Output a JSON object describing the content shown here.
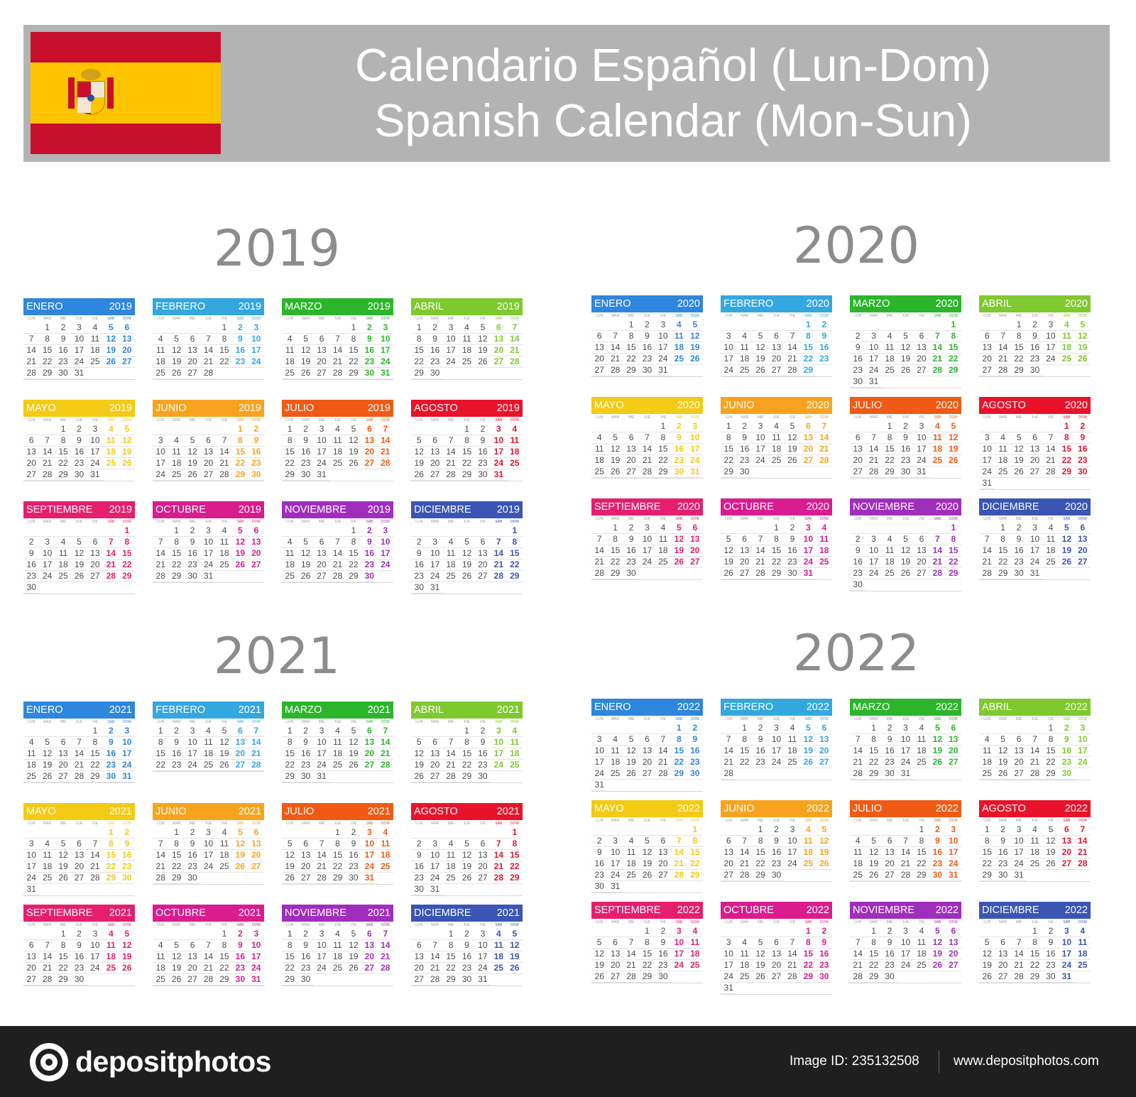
{
  "header": {
    "title_line1": "Calendario Español (Lun-Dom)",
    "title_line2": "Spanish Calendar (Mon-Sun)"
  },
  "flag": {
    "colors": {
      "red": "#c8102e",
      "yellow": "#ffc400"
    },
    "icon": "spain-flag-icon"
  },
  "day_names": [
    "LUN",
    "MAR",
    "MIÉ",
    "JUE",
    "VIE",
    "SÁB",
    "DOM"
  ],
  "month_names": [
    "ENERO",
    "FEBRERO",
    "MARZO",
    "ABRIL",
    "MAYO",
    "JUNIO",
    "JULIO",
    "AGOSTO",
    "SEPTIEMBRE",
    "OCTUBRE",
    "NOVIEMBRE",
    "DICIEMBRE"
  ],
  "month_colors": [
    "#2e86de",
    "#33a7e0",
    "#2bb52b",
    "#7ec92e",
    "#f3ca14",
    "#f7a31f",
    "#f05a14",
    "#e8132a",
    "#e61e6e",
    "#d91c8e",
    "#a02ebd",
    "#3a55b4"
  ],
  "year_titles": {
    "y2019": "2019",
    "y2020": "2020",
    "y2021": "2021",
    "y2022": "2022"
  },
  "years": [
    {
      "year": "2019",
      "months": [
        {
          "offset": 1,
          "days": 31
        },
        {
          "offset": 4,
          "days": 28
        },
        {
          "offset": 4,
          "days": 31
        },
        {
          "offset": 0,
          "days": 30
        },
        {
          "offset": 2,
          "days": 31
        },
        {
          "offset": 5,
          "days": 30
        },
        {
          "offset": 0,
          "days": 31
        },
        {
          "offset": 3,
          "days": 31
        },
        {
          "offset": 6,
          "days": 30
        },
        {
          "offset": 1,
          "days": 31
        },
        {
          "offset": 4,
          "days": 30
        },
        {
          "offset": 6,
          "days": 31
        }
      ]
    },
    {
      "year": "2020",
      "months": [
        {
          "offset": 2,
          "days": 31
        },
        {
          "offset": 5,
          "days": 29
        },
        {
          "offset": 6,
          "days": 31
        },
        {
          "offset": 2,
          "days": 30
        },
        {
          "offset": 4,
          "days": 31
        },
        {
          "offset": 0,
          "days": 30
        },
        {
          "offset": 2,
          "days": 31
        },
        {
          "offset": 5,
          "days": 31
        },
        {
          "offset": 1,
          "days": 30
        },
        {
          "offset": 3,
          "days": 31
        },
        {
          "offset": 6,
          "days": 30
        },
        {
          "offset": 1,
          "days": 31
        }
      ]
    },
    {
      "year": "2021",
      "months": [
        {
          "offset": 4,
          "days": 31
        },
        {
          "offset": 0,
          "days": 28
        },
        {
          "offset": 0,
          "days": 31
        },
        {
          "offset": 3,
          "days": 30
        },
        {
          "offset": 5,
          "days": 31
        },
        {
          "offset": 1,
          "days": 30
        },
        {
          "offset": 3,
          "days": 31
        },
        {
          "offset": 6,
          "days": 31
        },
        {
          "offset": 2,
          "days": 30
        },
        {
          "offset": 4,
          "days": 31
        },
        {
          "offset": 0,
          "days": 30
        },
        {
          "offset": 2,
          "days": 31
        }
      ]
    },
    {
      "year": "2022",
      "months": [
        {
          "offset": 5,
          "days": 31
        },
        {
          "offset": 1,
          "days": 28
        },
        {
          "offset": 1,
          "days": 31
        },
        {
          "offset": 4,
          "days": 30
        },
        {
          "offset": 6,
          "days": 31
        },
        {
          "offset": 2,
          "days": 30
        },
        {
          "offset": 4,
          "days": 31
        },
        {
          "offset": 0,
          "days": 31
        },
        {
          "offset": 3,
          "days": 30
        },
        {
          "offset": 5,
          "days": 31
        },
        {
          "offset": 1,
          "days": 30
        },
        {
          "offset": 3,
          "days": 31
        }
      ]
    }
  ],
  "footer": {
    "logo_text": "depositphotos",
    "image_id": "Image ID: 235132508",
    "url": "www.depositphotos.com",
    "logo_icon": "camera-aperture-icon"
  }
}
